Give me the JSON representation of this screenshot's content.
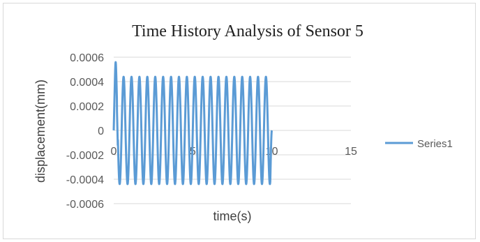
{
  "chart_data": {
    "type": "line",
    "title": "Time History Analysis of Sensor 5",
    "xlabel": "time(s)",
    "ylabel": "displacement(mm)",
    "xlim": [
      0,
      15
    ],
    "ylim": [
      -0.0006,
      0.0006
    ],
    "x_ticks": [
      "0",
      "5",
      "10",
      "15"
    ],
    "y_ticks": [
      "0.0006",
      "0.0004",
      "0.0002",
      "0",
      "-0.0002",
      "-0.0004",
      "-0.0006"
    ],
    "grid": "horizontal",
    "legend_position": "right",
    "series": [
      {
        "name": "Series1",
        "color": "#5b9bd5",
        "x_range": [
          0,
          10
        ],
        "frequency_hz": 2,
        "amplitude": 0.00044,
        "peaks": [
          {
            "x": 0.12,
            "y": 0.0005
          },
          {
            "x": 0.22,
            "y": 0.00033
          },
          {
            "x": 0.75,
            "y": -0.00047
          },
          {
            "x": 10.0,
            "y": 0.0
          }
        ]
      }
    ]
  }
}
